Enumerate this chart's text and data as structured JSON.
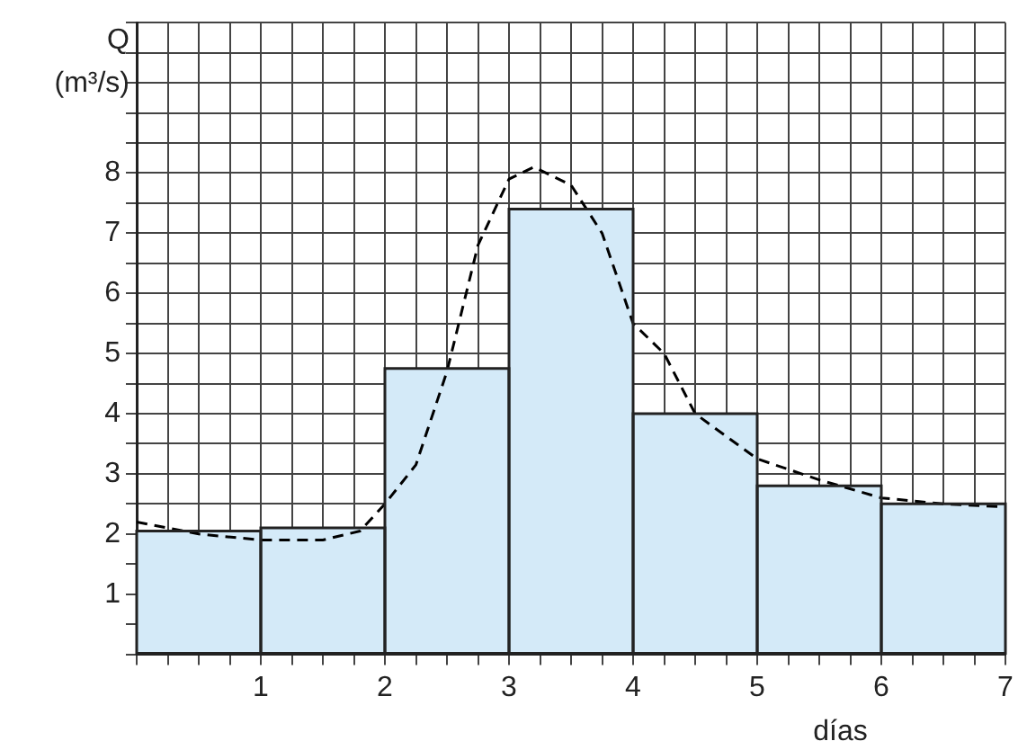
{
  "chart_data": {
    "type": "histogram",
    "xlabel": "días",
    "ylabel": "Q\n(m³/s)",
    "bins": [
      0,
      1,
      2,
      3,
      4,
      5,
      6,
      7
    ],
    "values": [
      2.05,
      2.1,
      4.75,
      7.4,
      4.0,
      2.8,
      2.5
    ],
    "color": "#d4eaf8",
    "series": [
      {
        "type": "line",
        "color": "#000000",
        "line_style": "dashed",
        "marker": "none",
        "x": [
          0,
          0.5,
          1,
          1.5,
          1.8,
          2,
          2.25,
          2.5,
          2.75,
          3,
          3.2,
          3.5,
          3.75,
          4,
          4.25,
          4.5,
          5,
          5.5,
          6,
          6.5,
          7
        ],
        "values": [
          2.2,
          2.0,
          1.9,
          1.9,
          2.05,
          2.5,
          3.15,
          4.7,
          6.8,
          7.9,
          8.1,
          7.8,
          7.0,
          5.5,
          5.0,
          4.0,
          3.25,
          2.9,
          2.6,
          2.5,
          2.45
        ]
      }
    ],
    "xlim": [
      0,
      7
    ],
    "xticks": [
      {
        "value": 0,
        "label": null
      },
      {
        "value": 0.25,
        "label": null
      },
      {
        "value": 0.5,
        "label": null
      },
      {
        "value": 0.75,
        "label": null
      },
      1,
      {
        "value": 1.25,
        "label": null
      },
      {
        "value": 1.5,
        "label": null
      },
      {
        "value": 1.75,
        "label": null
      },
      2,
      {
        "value": 2.25,
        "label": null
      },
      {
        "value": 2.5,
        "label": null
      },
      {
        "value": 2.75,
        "label": null
      },
      3,
      {
        "value": 3.25,
        "label": null
      },
      {
        "value": 3.5,
        "label": null
      },
      {
        "value": 3.75,
        "label": null
      },
      4,
      {
        "value": 4.25,
        "label": null
      },
      {
        "value": 4.5,
        "label": null
      },
      {
        "value": 4.75,
        "label": null
      },
      5,
      {
        "value": 5.25,
        "label": null
      },
      {
        "value": 5.5,
        "label": null
      },
      {
        "value": 5.75,
        "label": null
      },
      6,
      {
        "value": 6.25,
        "label": null
      },
      {
        "value": 6.5,
        "label": null
      },
      {
        "value": 6.75,
        "label": null
      },
      7
    ],
    "ylim": [
      0,
      10.5
    ],
    "yticks": [
      {
        "value": 0,
        "label": null
      },
      {
        "value": 0.5,
        "label": null
      },
      1,
      {
        "value": 1.5,
        "label": null
      },
      2,
      {
        "value": 2.5,
        "label": null
      },
      3,
      {
        "value": 3.5,
        "label": null
      },
      4,
      {
        "value": 4.5,
        "label": null
      },
      5,
      {
        "value": 5.5,
        "label": null
      },
      6,
      {
        "value": 6.5,
        "label": null
      },
      7,
      {
        "value": 7.5,
        "label": null
      },
      8,
      {
        "value": 8.5,
        "label": null
      },
      {
        "value": 9,
        "label": null
      },
      {
        "value": 9.5,
        "label": null
      },
      {
        "value": 10,
        "label": null
      },
      {
        "value": 10.5,
        "label": null
      }
    ],
    "grid": true,
    "legend": false
  }
}
